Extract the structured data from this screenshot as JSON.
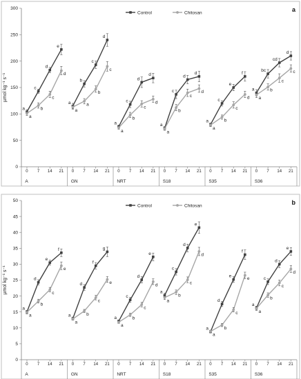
{
  "chart_data": [
    {
      "panel": "a",
      "type": "line",
      "ylabel": "µmol kg⁻¹ s⁻¹",
      "ylim": [
        0,
        300
      ],
      "yticks": [
        0,
        50,
        100,
        150,
        200,
        250,
        300
      ],
      "x_ticks": [
        "0",
        "7",
        "14",
        "21"
      ],
      "groups": [
        "A",
        "GN",
        "NRT",
        "S18",
        "S35",
        "S36"
      ],
      "legend": {
        "placement": "top-center",
        "entries": [
          "Control",
          "Chitosan"
        ]
      },
      "series": [
        {
          "name": "Control",
          "color": "#404040",
          "marker": "square",
          "values": [
            [
              104,
              143,
              183,
              222
            ],
            [
              115,
              157,
              193,
              240
            ],
            [
              76,
              118,
              160,
              168
            ],
            [
              73,
              137,
              165,
              171
            ],
            [
              80,
              120,
              150,
              171
            ],
            [
              140,
              176,
              197,
              210
            ]
          ],
          "errors": [
            [
              4,
              4,
              5,
              10
            ],
            [
              5,
              6,
              7,
              12
            ],
            [
              3,
              6,
              10,
              9
            ],
            [
              3,
              8,
              8,
              10
            ],
            [
              3,
              5,
              6,
              9
            ],
            [
              6,
              8,
              8,
              8
            ]
          ],
          "sig": [
            [
              "a",
              "c",
              "d",
              "e"
            ],
            [
              "a",
              "b",
              "c",
              "d"
            ],
            [
              "a",
              "c",
              "d",
              "d"
            ],
            [
              "a",
              "c",
              "d",
              "d"
            ],
            [
              "a",
              "c",
              "e",
              "f"
            ],
            [
              "a",
              "bc",
              "cd",
              "d"
            ]
          ]
        },
        {
          "name": "Chitosan",
          "color": "#a6a6a6",
          "marker": "circle",
          "values": [
            [
              101,
              116,
              137,
              182
            ],
            [
              113,
              124,
              147,
              190
            ],
            [
              74,
              98,
              119,
              128
            ],
            [
              72,
              112,
              140,
              148
            ],
            [
              79,
              94,
              117,
              137
            ],
            [
              136,
              151,
              168,
              186
            ]
          ],
          "errors": [
            [
              4,
              5,
              6,
              8
            ],
            [
              4,
              5,
              6,
              9
            ],
            [
              3,
              5,
              6,
              6
            ],
            [
              3,
              6,
              7,
              7
            ],
            [
              3,
              4,
              6,
              6
            ],
            [
              5,
              6,
              8,
              7
            ]
          ],
          "sig": [
            [
              "a",
              "b",
              "c",
              "d"
            ],
            [
              "a",
              "a",
              "b",
              "c"
            ],
            [
              "a",
              "b",
              "c",
              "d"
            ],
            [
              "a",
              "b",
              "c",
              "d"
            ],
            [
              "a",
              "b",
              "c",
              "d"
            ],
            [
              "a",
              "b",
              "c",
              "c"
            ]
          ]
        }
      ]
    },
    {
      "panel": "b",
      "type": "line",
      "ylabel": "µmol kg⁻¹ s⁻¹",
      "ylim": [
        0,
        50
      ],
      "yticks": [
        0,
        5,
        10,
        15,
        20,
        25,
        30,
        35,
        40,
        45,
        50
      ],
      "x_ticks": [
        "0",
        "7",
        "14",
        "21"
      ],
      "groups": [
        "A",
        "GN",
        "NRT",
        "S18",
        "S35",
        "S36"
      ],
      "legend": {
        "placement": "top-center",
        "entries": [
          "Control",
          "Chitosan"
        ]
      },
      "series": [
        {
          "name": "Control",
          "color": "#404040",
          "marker": "square",
          "values": [
            [
              15,
              24.3,
              30.5,
              33.6
            ],
            [
              12.9,
              22.7,
              29.5,
              33.9
            ],
            [
              12.1,
              18.8,
              25.1,
              32.3
            ],
            [
              20.2,
              27.6,
              35.1,
              41.5
            ],
            [
              8.8,
              17.5,
              25.2,
              33
            ],
            [
              16.2,
              24.5,
              30,
              34
            ]
          ],
          "errors": [
            [
              0.5,
              0.8,
              0.8,
              1.2
            ],
            [
              0.5,
              0.9,
              1,
              1.5
            ],
            [
              0.4,
              0.8,
              1,
              1.2
            ],
            [
              0.7,
              1,
              1.2,
              1.8
            ],
            [
              0.4,
              0.8,
              0.9,
              1.5
            ],
            [
              0.6,
              0.9,
              1.1,
              1.2
            ]
          ],
          "sig": [
            [
              "a",
              "d",
              "e",
              "f"
            ],
            [
              "a",
              "d",
              "f",
              "g"
            ],
            [
              "a",
              "c",
              "d",
              "e"
            ],
            [
              "a",
              "c",
              "d",
              "e"
            ],
            [
              "a",
              "d",
              "e",
              "f"
            ],
            [
              "a",
              "c",
              "d",
              "e"
            ]
          ]
        },
        {
          "name": "Chitosan",
          "color": "#a6a6a6",
          "marker": "circle",
          "values": [
            [
              14.9,
              18.4,
              22,
              29.5
            ],
            [
              12.8,
              15.3,
              19.5,
              25.2
            ],
            [
              11.8,
              14.1,
              17.3,
              24.5
            ],
            [
              19.5,
              21.2,
              25.1,
              34
            ],
            [
              8.9,
              10.9,
              15.7,
              26.5
            ],
            [
              16.1,
              20.3,
              24.1,
              28.5
            ]
          ],
          "errors": [
            [
              0.5,
              0.6,
              0.7,
              1.2
            ],
            [
              0.4,
              0.5,
              0.7,
              0.9
            ],
            [
              0.4,
              0.5,
              0.7,
              0.9
            ],
            [
              0.6,
              0.7,
              0.9,
              1.3
            ],
            [
              0.4,
              0.5,
              0.7,
              1
            ],
            [
              0.6,
              0.7,
              0.9,
              1.1
            ]
          ],
          "sig": [
            [
              "a",
              "b",
              "c",
              "e"
            ],
            [
              "a",
              "b",
              "c",
              "e"
            ],
            [
              "a",
              "b",
              "c",
              "d"
            ],
            [
              "a",
              "b",
              "c",
              "d"
            ],
            [
              "a",
              "b",
              "c",
              "e"
            ],
            [
              "a",
              "b",
              "c",
              "d"
            ]
          ]
        }
      ]
    }
  ]
}
